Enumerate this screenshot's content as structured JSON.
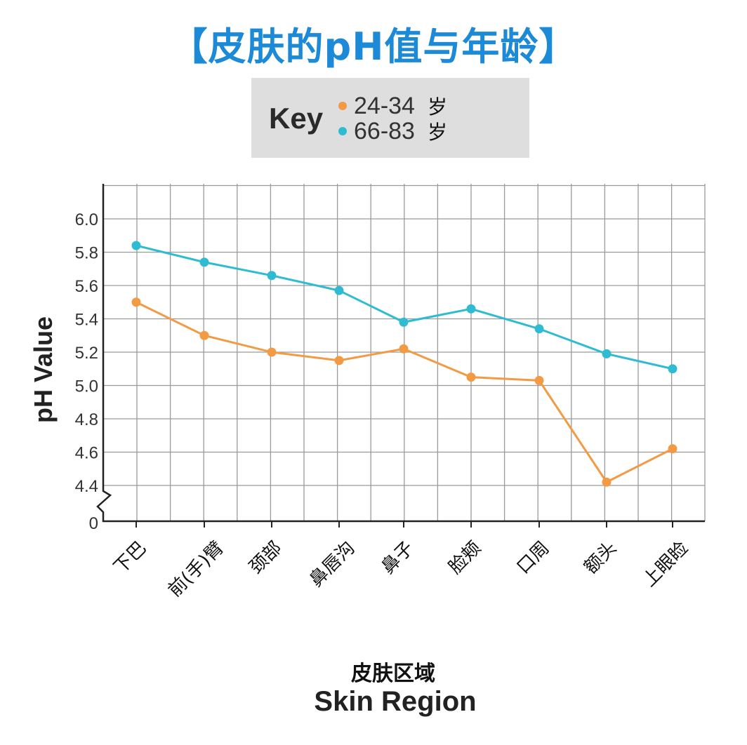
{
  "title": "【皮肤的pH值与年龄】",
  "legend": {
    "key_label": "Key",
    "items": [
      {
        "label": "24-34",
        "unit": "岁",
        "color": "#f39a45"
      },
      {
        "label": "66-83",
        "unit": "岁",
        "color": "#2fbcd3"
      }
    ]
  },
  "axes": {
    "ylabel": "pH Value",
    "xlabel_cn": "皮肤区域",
    "xlabel_en": "Skin Region",
    "yticks": [
      "6.0",
      "5.8",
      "5.6",
      "5.4",
      "5.2",
      "5.0",
      "4.8",
      "4.6",
      "4.4",
      "0"
    ]
  },
  "categories": [
    "下巴",
    "前(手)臂",
    "颈部",
    "鼻唇沟",
    "鼻子",
    "脸颊",
    "口周",
    "额头",
    "上眼睑"
  ],
  "chart_data": {
    "type": "line",
    "title": "【皮肤的pH值与年龄】",
    "xlabel": "皮肤区域 Skin Region",
    "ylabel": "pH Value",
    "categories": [
      "下巴",
      "前(手)臂",
      "颈部",
      "鼻唇沟",
      "鼻子",
      "脸颊",
      "口周",
      "额头",
      "上眼睑"
    ],
    "series": [
      {
        "name": "24-34 岁",
        "color": "#f39a45",
        "values": [
          5.5,
          5.3,
          5.2,
          5.15,
          5.22,
          5.05,
          5.03,
          4.42,
          4.62
        ]
      },
      {
        "name": "66-83 岁",
        "color": "#2fbcd3",
        "values": [
          5.84,
          5.74,
          5.66,
          5.57,
          5.38,
          5.46,
          5.34,
          5.19,
          5.1
        ]
      }
    ],
    "yticks": [
      0,
      4.4,
      4.6,
      4.8,
      5.0,
      5.2,
      5.4,
      5.6,
      5.8,
      6.0
    ],
    "ylim": [
      4.3,
      6.2
    ],
    "axis_break": true,
    "grid": true,
    "legend_position": "top-center"
  }
}
